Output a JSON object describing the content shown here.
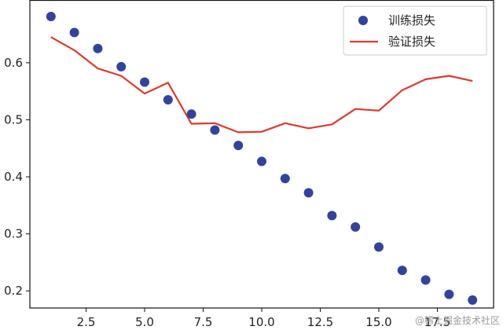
{
  "chart_data": {
    "type": "line",
    "x": [
      1,
      2,
      3,
      4,
      5,
      6,
      7,
      8,
      9,
      10,
      11,
      12,
      13,
      14,
      15,
      16,
      17,
      18,
      19
    ],
    "series": [
      {
        "name": "训练损失",
        "style": "scatter",
        "color": "#34439a",
        "values": [
          0.681,
          0.653,
          0.625,
          0.593,
          0.566,
          0.535,
          0.51,
          0.482,
          0.455,
          0.427,
          0.397,
          0.372,
          0.332,
          0.312,
          0.277,
          0.236,
          0.219,
          0.194,
          0.184
        ]
      },
      {
        "name": "验证损失",
        "style": "line",
        "color": "#e0392b",
        "values": [
          0.645,
          0.622,
          0.59,
          0.577,
          0.546,
          0.565,
          0.493,
          0.494,
          0.478,
          0.479,
          0.494,
          0.485,
          0.492,
          0.519,
          0.516,
          0.552,
          0.571,
          0.577,
          0.568
        ]
      }
    ],
    "xlim": [
      0.1,
      19.9
    ],
    "ylim": [
      0.17,
      0.71
    ],
    "xticks": [
      2.5,
      5.0,
      7.5,
      10.0,
      12.5,
      15.0,
      17.5
    ],
    "xtick_labels": [
      "2.5",
      "5.0",
      "7.5",
      "10.0",
      "12.5",
      "15.0",
      "17.5"
    ],
    "yticks": [
      0.2,
      0.3,
      0.4,
      0.5,
      0.6
    ],
    "ytick_labels": [
      "0.2",
      "0.3",
      "0.4",
      "0.5",
      "0.6"
    ],
    "title": "",
    "xlabel": "",
    "ylabel": "",
    "grid": false,
    "legend_position": "top-right"
  },
  "watermark": "@稀土掘金技术社区"
}
